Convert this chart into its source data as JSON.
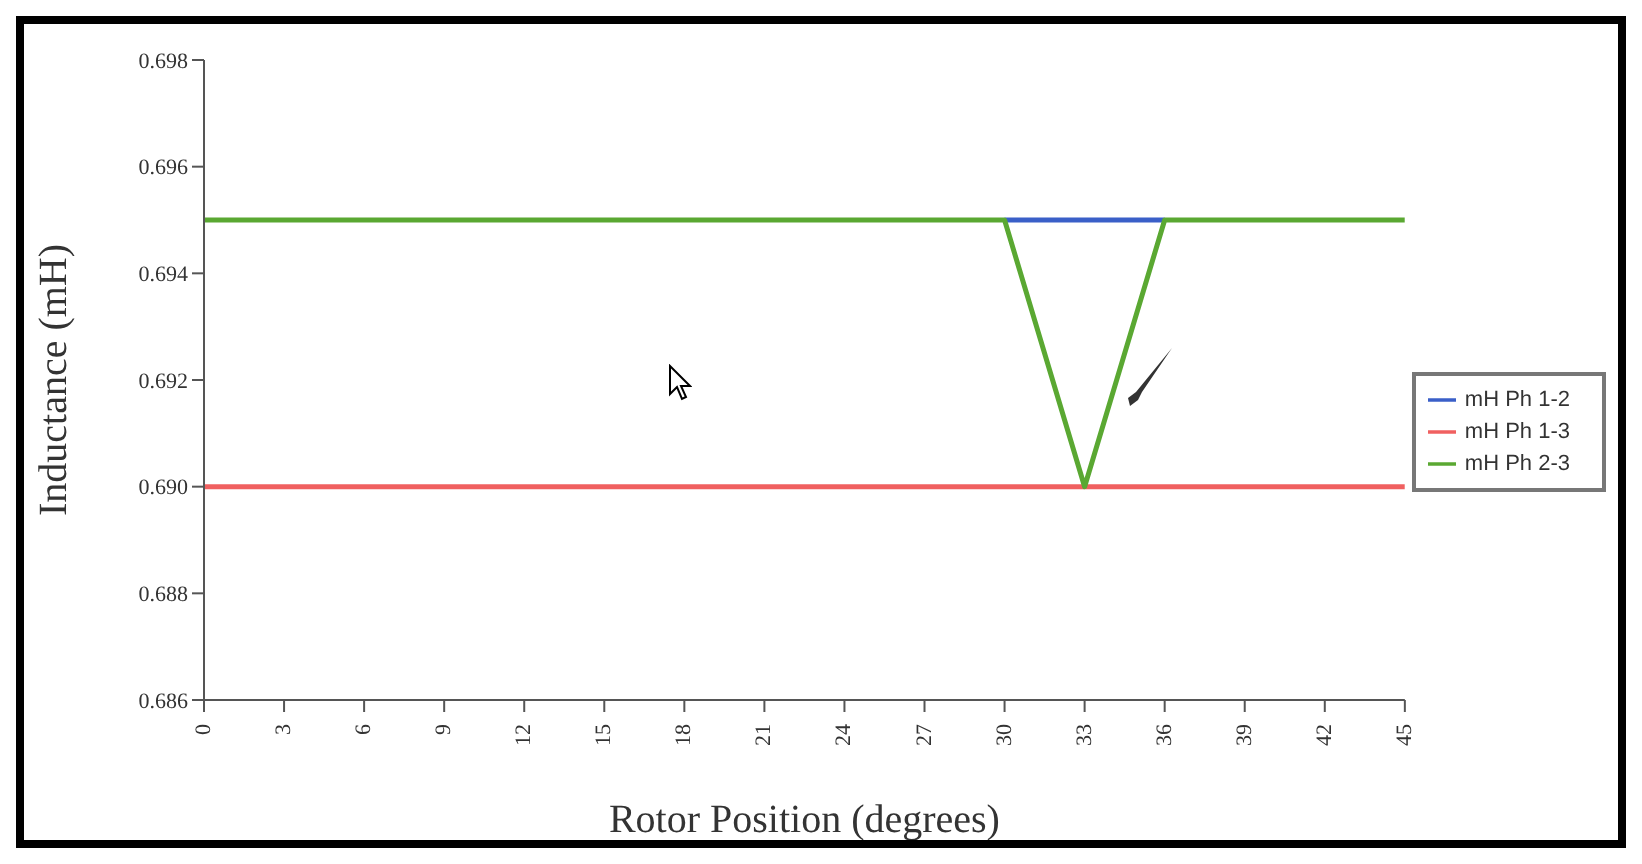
{
  "chart_data": {
    "type": "line",
    "xlabel": "Rotor Position (degrees)",
    "ylabel": "Inductance (mH)",
    "x": [
      0,
      3,
      6,
      9,
      12,
      15,
      18,
      21,
      24,
      27,
      30,
      33,
      36,
      39,
      42,
      45
    ],
    "series": [
      {
        "name": "mH Ph 1-2",
        "color": "#3a5fc8",
        "values": [
          null,
          null,
          null,
          null,
          null,
          null,
          null,
          null,
          null,
          null,
          0.695,
          0.695,
          0.695,
          null,
          null,
          null
        ]
      },
      {
        "name": "mH Ph 1-3",
        "color": "#f06060",
        "values": [
          0.69,
          0.69,
          0.69,
          0.69,
          0.69,
          0.69,
          0.69,
          0.69,
          0.69,
          0.69,
          0.69,
          0.69,
          0.69,
          0.69,
          0.69,
          0.69
        ]
      },
      {
        "name": "mH Ph 2-3",
        "color": "#5aa832",
        "values": [
          0.695,
          0.695,
          0.695,
          0.695,
          0.695,
          0.695,
          0.695,
          0.695,
          0.695,
          0.695,
          0.695,
          0.69,
          0.695,
          0.695,
          0.695,
          0.695
        ]
      }
    ],
    "xlim": [
      0,
      45
    ],
    "xticks": [
      0,
      3,
      6,
      9,
      12,
      15,
      18,
      21,
      24,
      27,
      30,
      33,
      36,
      39,
      42,
      45
    ],
    "ylim": [
      0.686,
      0.698
    ],
    "yticks": [
      0.686,
      0.688,
      {
        "value": 0.69,
        "label": "0.690"
      },
      0.692,
      0.694,
      0.696,
      0.698
    ],
    "grid": false,
    "legend": "right",
    "marker": "none",
    "line_style": "solid"
  }
}
